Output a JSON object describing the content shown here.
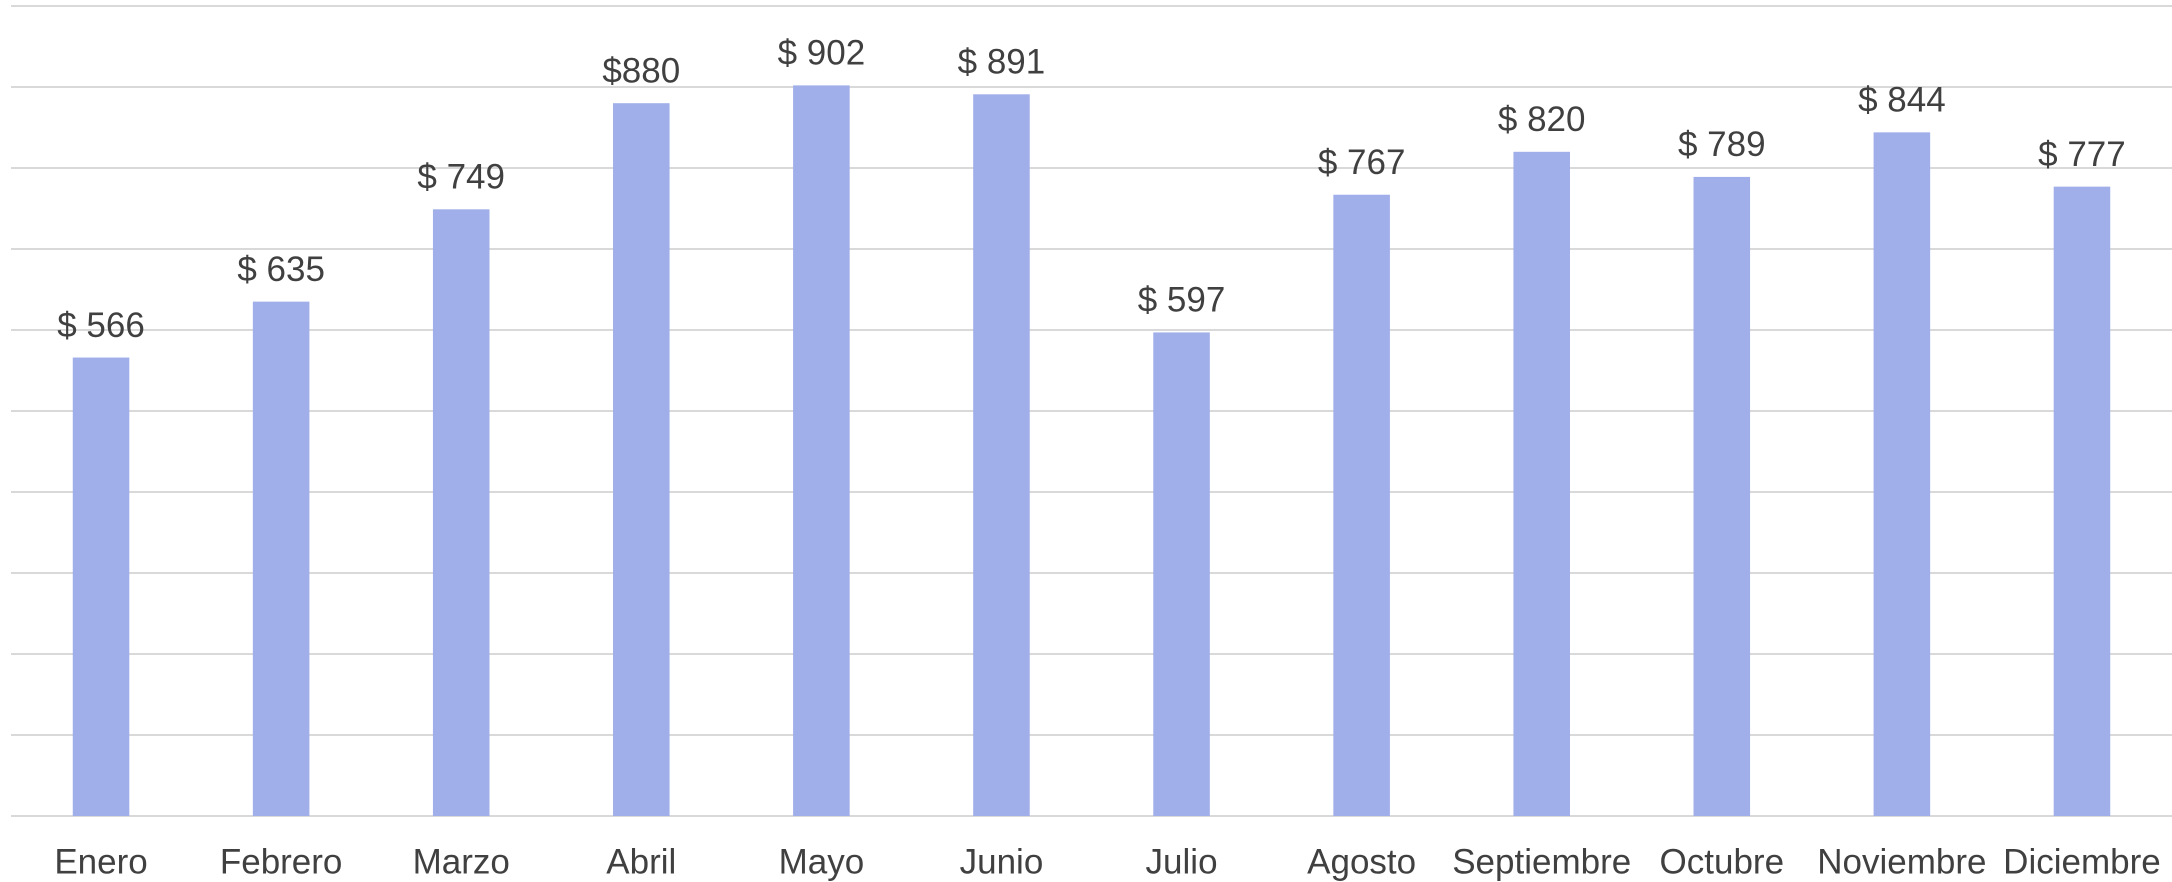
{
  "chart_data": {
    "type": "bar",
    "categories": [
      "Enero",
      "Febrero",
      "Marzo",
      "Abril",
      "Mayo",
      "Junio",
      "Julio",
      "Agosto",
      "Septiembre",
      "Octubre",
      "Noviembre",
      "Diciembre"
    ],
    "values": [
      566,
      635,
      749,
      880,
      902,
      891,
      597,
      767,
      820,
      789,
      844,
      777
    ],
    "value_labels": [
      "$ 566",
      "$ 635",
      "$ 749",
      "$880",
      "$ 902",
      "$ 891",
      "$ 597",
      "$ 767",
      "$ 820",
      "$ 789",
      "$ 844",
      "$ 777"
    ],
    "color": "#a0aee9",
    "ylim": [
      0,
      1000
    ],
    "yticks": [
      0,
      100,
      200,
      300,
      400,
      500,
      600,
      700,
      800,
      900,
      1000
    ],
    "grid": true
  }
}
